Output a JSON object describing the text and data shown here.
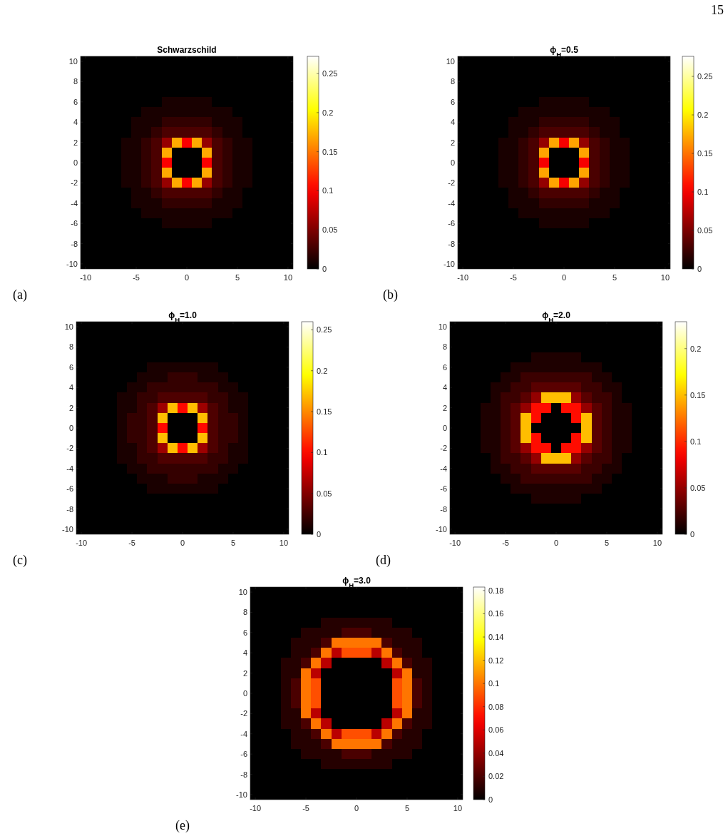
{
  "chart_data": [
    {
      "type": "heatmap",
      "title": "Schwarzschild",
      "annotations": [
        "(a)",
        "15"
      ],
      "categories": [
        "-10",
        null,
        null,
        null,
        null,
        "-5",
        null,
        null,
        null,
        null,
        "0",
        null,
        null,
        null,
        null,
        "5",
        null,
        null,
        null,
        null,
        "10"
      ],
      "y_categories": [
        "10",
        null,
        "8",
        null,
        "6",
        null,
        "4",
        null,
        "2",
        null,
        "0",
        null,
        "-2",
        null,
        "-4",
        null,
        "-6",
        null,
        "-8",
        null,
        "-10"
      ],
      "clim": [
        0,
        0.272
      ],
      "cticks": [
        0,
        0.05,
        0.1,
        0.15,
        0.2,
        0.25
      ],
      "cells": [
        [
          0,
          0,
          0,
          0,
          0,
          0,
          0,
          0,
          0,
          0,
          0,
          0,
          0,
          0,
          0,
          0,
          0,
          0,
          0,
          0,
          0
        ],
        [
          0,
          0,
          0,
          0,
          0,
          0,
          0,
          0,
          0,
          0,
          0,
          0,
          0,
          0,
          0,
          0,
          0,
          0,
          0,
          0,
          0
        ],
        [
          0,
          0,
          0,
          0,
          0,
          0,
          0,
          0,
          0,
          0,
          0,
          0,
          0,
          0,
          0,
          0,
          0,
          0,
          0,
          0,
          0
        ],
        [
          0,
          0,
          0,
          0,
          0,
          0,
          0,
          0,
          0,
          0,
          0,
          0,
          0,
          0,
          0,
          0,
          0,
          0,
          0,
          0,
          0
        ],
        [
          0,
          0,
          0,
          0,
          0,
          0,
          0,
          0,
          0.01,
          0.01,
          0.01,
          0.01,
          0.01,
          0,
          0,
          0,
          0,
          0,
          0,
          0,
          0
        ],
        [
          0,
          0,
          0,
          0,
          0,
          0,
          0.01,
          0.01,
          0.01,
          0.01,
          0.01,
          0.01,
          0.01,
          0.01,
          0.01,
          0,
          0,
          0,
          0,
          0,
          0
        ],
        [
          0,
          0,
          0,
          0,
          0,
          0.01,
          0.01,
          0.01,
          0.02,
          0.02,
          0.02,
          0.02,
          0.02,
          0.01,
          0.01,
          0.01,
          0,
          0,
          0,
          0,
          0
        ],
        [
          0,
          0,
          0,
          0,
          0,
          0.01,
          0.01,
          0.02,
          0.03,
          0.03,
          0.03,
          0.03,
          0.03,
          0.02,
          0.01,
          0.01,
          0,
          0,
          0,
          0,
          0
        ],
        [
          0,
          0,
          0,
          0,
          0.01,
          0.01,
          0.02,
          0.03,
          0.06,
          0.17,
          0.1,
          0.17,
          0.06,
          0.03,
          0.02,
          0.01,
          0.01,
          0,
          0,
          0,
          0
        ],
        [
          0,
          0,
          0,
          0,
          0.01,
          0.01,
          0.02,
          0.03,
          0.17,
          0,
          0,
          0,
          0.17,
          0.03,
          0.02,
          0.01,
          0.01,
          0,
          0,
          0,
          0
        ],
        [
          0,
          0,
          0,
          0,
          0.01,
          0.01,
          0.02,
          0.03,
          0.1,
          0,
          0,
          0,
          0.1,
          0.03,
          0.02,
          0.01,
          0.01,
          0,
          0,
          0,
          0
        ],
        [
          0,
          0,
          0,
          0,
          0.01,
          0.01,
          0.02,
          0.03,
          0.17,
          0,
          0,
          0,
          0.17,
          0.03,
          0.02,
          0.01,
          0.01,
          0,
          0,
          0,
          0
        ],
        [
          0,
          0,
          0,
          0,
          0.01,
          0.01,
          0.02,
          0.03,
          0.06,
          0.17,
          0.1,
          0.17,
          0.06,
          0.03,
          0.02,
          0.01,
          0.01,
          0,
          0,
          0,
          0
        ],
        [
          0,
          0,
          0,
          0,
          0,
          0.01,
          0.01,
          0.02,
          0.03,
          0.03,
          0.03,
          0.03,
          0.03,
          0.02,
          0.01,
          0.01,
          0,
          0,
          0,
          0,
          0
        ],
        [
          0,
          0,
          0,
          0,
          0,
          0.01,
          0.01,
          0.01,
          0.02,
          0.02,
          0.02,
          0.02,
          0.02,
          0.01,
          0.01,
          0.01,
          0,
          0,
          0,
          0,
          0
        ],
        [
          0,
          0,
          0,
          0,
          0,
          0,
          0.01,
          0.01,
          0.01,
          0.01,
          0.01,
          0.01,
          0.01,
          0.01,
          0.01,
          0,
          0,
          0,
          0,
          0,
          0
        ],
        [
          0,
          0,
          0,
          0,
          0,
          0,
          0,
          0,
          0.01,
          0.01,
          0.01,
          0.01,
          0.01,
          0,
          0,
          0,
          0,
          0,
          0,
          0,
          0
        ],
        [
          0,
          0,
          0,
          0,
          0,
          0,
          0,
          0,
          0,
          0,
          0,
          0,
          0,
          0,
          0,
          0,
          0,
          0,
          0,
          0,
          0
        ],
        [
          0,
          0,
          0,
          0,
          0,
          0,
          0,
          0,
          0,
          0,
          0,
          0,
          0,
          0,
          0,
          0,
          0,
          0,
          0,
          0,
          0
        ],
        [
          0,
          0,
          0,
          0,
          0,
          0,
          0,
          0,
          0,
          0,
          0,
          0,
          0,
          0,
          0,
          0,
          0,
          0,
          0,
          0,
          0
        ],
        [
          0,
          0,
          0,
          0,
          0,
          0,
          0,
          0,
          0,
          0,
          0,
          0,
          0,
          0,
          0,
          0,
          0,
          0,
          0,
          0,
          0
        ]
      ]
    },
    {
      "type": "heatmap",
      "title": "ϕ$_{H}$=0.5",
      "annotations": [
        "(b)"
      ],
      "categories": [
        "-10",
        null,
        null,
        null,
        null,
        "-5",
        null,
        null,
        null,
        null,
        "0",
        null,
        null,
        null,
        null,
        "5",
        null,
        null,
        null,
        null,
        "10"
      ],
      "y_categories": [
        "10",
        null,
        "8",
        null,
        "6",
        null,
        "4",
        null,
        "2",
        null,
        "0",
        null,
        "-2",
        null,
        "-4",
        null,
        "-6",
        null,
        "-8",
        null,
        "-10"
      ],
      "clim": [
        0,
        0.276
      ],
      "cticks": [
        0,
        0.05,
        0.1,
        0.15,
        0.2,
        0.25
      ],
      "cells": [
        [
          0,
          0,
          0,
          0,
          0,
          0,
          0,
          0,
          0,
          0,
          0,
          0,
          0,
          0,
          0,
          0,
          0,
          0,
          0,
          0,
          0
        ],
        [
          0,
          0,
          0,
          0,
          0,
          0,
          0,
          0,
          0,
          0,
          0,
          0,
          0,
          0,
          0,
          0,
          0,
          0,
          0,
          0,
          0
        ],
        [
          0,
          0,
          0,
          0,
          0,
          0,
          0,
          0,
          0,
          0,
          0,
          0,
          0,
          0,
          0,
          0,
          0,
          0,
          0,
          0,
          0
        ],
        [
          0,
          0,
          0,
          0,
          0,
          0,
          0,
          0,
          0,
          0,
          0,
          0,
          0,
          0,
          0,
          0,
          0,
          0,
          0,
          0,
          0
        ],
        [
          0,
          0,
          0,
          0,
          0,
          0,
          0,
          0,
          0.01,
          0.01,
          0.01,
          0.01,
          0.01,
          0,
          0,
          0,
          0,
          0,
          0,
          0,
          0
        ],
        [
          0,
          0,
          0,
          0,
          0,
          0,
          0.01,
          0.01,
          0.01,
          0.01,
          0.01,
          0.01,
          0.01,
          0.01,
          0.01,
          0,
          0,
          0,
          0,
          0,
          0
        ],
        [
          0,
          0,
          0,
          0,
          0,
          0.01,
          0.01,
          0.01,
          0.02,
          0.02,
          0.02,
          0.02,
          0.02,
          0.01,
          0.01,
          0.01,
          0,
          0,
          0,
          0,
          0
        ],
        [
          0,
          0,
          0,
          0,
          0,
          0.01,
          0.01,
          0.02,
          0.03,
          0.03,
          0.03,
          0.03,
          0.03,
          0.02,
          0.01,
          0.01,
          0,
          0,
          0,
          0,
          0
        ],
        [
          0,
          0,
          0,
          0,
          0.01,
          0.01,
          0.02,
          0.03,
          0.06,
          0.17,
          0.1,
          0.17,
          0.06,
          0.03,
          0.02,
          0.01,
          0.01,
          0,
          0,
          0,
          0
        ],
        [
          0,
          0,
          0,
          0,
          0.01,
          0.01,
          0.02,
          0.03,
          0.17,
          0,
          0,
          0,
          0.17,
          0.03,
          0.02,
          0.01,
          0.01,
          0,
          0,
          0,
          0
        ],
        [
          0,
          0,
          0,
          0,
          0.01,
          0.01,
          0.02,
          0.03,
          0.1,
          0,
          0,
          0,
          0.1,
          0.03,
          0.02,
          0.01,
          0.01,
          0,
          0,
          0,
          0
        ],
        [
          0,
          0,
          0,
          0,
          0.01,
          0.01,
          0.02,
          0.03,
          0.17,
          0,
          0,
          0,
          0.17,
          0.03,
          0.02,
          0.01,
          0.01,
          0,
          0,
          0,
          0
        ],
        [
          0,
          0,
          0,
          0,
          0.01,
          0.01,
          0.02,
          0.03,
          0.06,
          0.17,
          0.1,
          0.17,
          0.06,
          0.03,
          0.02,
          0.01,
          0.01,
          0,
          0,
          0,
          0
        ],
        [
          0,
          0,
          0,
          0,
          0,
          0.01,
          0.01,
          0.02,
          0.03,
          0.03,
          0.03,
          0.03,
          0.03,
          0.02,
          0.01,
          0.01,
          0,
          0,
          0,
          0,
          0
        ],
        [
          0,
          0,
          0,
          0,
          0,
          0.01,
          0.01,
          0.01,
          0.02,
          0.02,
          0.02,
          0.02,
          0.02,
          0.01,
          0.01,
          0.01,
          0,
          0,
          0,
          0,
          0
        ],
        [
          0,
          0,
          0,
          0,
          0,
          0,
          0.01,
          0.01,
          0.01,
          0.01,
          0.01,
          0.01,
          0.01,
          0.01,
          0.01,
          0,
          0,
          0,
          0,
          0,
          0
        ],
        [
          0,
          0,
          0,
          0,
          0,
          0,
          0,
          0,
          0.01,
          0.01,
          0.01,
          0.01,
          0.01,
          0,
          0,
          0,
          0,
          0,
          0,
          0,
          0
        ],
        [
          0,
          0,
          0,
          0,
          0,
          0,
          0,
          0,
          0,
          0,
          0,
          0,
          0,
          0,
          0,
          0,
          0,
          0,
          0,
          0,
          0
        ],
        [
          0,
          0,
          0,
          0,
          0,
          0,
          0,
          0,
          0,
          0,
          0,
          0,
          0,
          0,
          0,
          0,
          0,
          0,
          0,
          0,
          0
        ],
        [
          0,
          0,
          0,
          0,
          0,
          0,
          0,
          0,
          0,
          0,
          0,
          0,
          0,
          0,
          0,
          0,
          0,
          0,
          0,
          0,
          0
        ],
        [
          0,
          0,
          0,
          0,
          0,
          0,
          0,
          0,
          0,
          0,
          0,
          0,
          0,
          0,
          0,
          0,
          0,
          0,
          0,
          0,
          0
        ]
      ]
    },
    {
      "type": "heatmap",
      "title": "ϕ$_{H}$=1.0",
      "annotations": [
        "(c)"
      ],
      "categories": [
        "-10",
        null,
        null,
        null,
        null,
        "-5",
        null,
        null,
        null,
        null,
        "0",
        null,
        null,
        null,
        null,
        "5",
        null,
        null,
        null,
        null,
        "10"
      ],
      "y_categories": [
        "10",
        null,
        "8",
        null,
        "6",
        null,
        "4",
        null,
        "2",
        null,
        "0",
        null,
        "-2",
        null,
        "-4",
        null,
        "-6",
        null,
        "-8",
        null,
        "-10"
      ],
      "clim": [
        0,
        0.26
      ],
      "cticks": [
        0,
        0.05,
        0.1,
        0.15,
        0.2,
        0.25
      ],
      "cells": [
        [
          0,
          0,
          0,
          0,
          0,
          0,
          0,
          0,
          0,
          0,
          0,
          0,
          0,
          0,
          0,
          0,
          0,
          0,
          0,
          0,
          0
        ],
        [
          0,
          0,
          0,
          0,
          0,
          0,
          0,
          0,
          0,
          0,
          0,
          0,
          0,
          0,
          0,
          0,
          0,
          0,
          0,
          0,
          0
        ],
        [
          0,
          0,
          0,
          0,
          0,
          0,
          0,
          0,
          0,
          0,
          0,
          0,
          0,
          0,
          0,
          0,
          0,
          0,
          0,
          0,
          0
        ],
        [
          0,
          0,
          0,
          0,
          0,
          0,
          0,
          0,
          0,
          0,
          0,
          0,
          0,
          0,
          0,
          0,
          0,
          0,
          0,
          0,
          0
        ],
        [
          0,
          0,
          0,
          0,
          0,
          0,
          0,
          0.01,
          0.01,
          0.01,
          0.01,
          0.01,
          0.01,
          0.01,
          0,
          0,
          0,
          0,
          0,
          0,
          0
        ],
        [
          0,
          0,
          0,
          0,
          0,
          0,
          0.01,
          0.01,
          0.01,
          0.02,
          0.02,
          0.02,
          0.01,
          0.01,
          0.01,
          0,
          0,
          0,
          0,
          0,
          0
        ],
        [
          0,
          0,
          0,
          0,
          0,
          0.01,
          0.01,
          0.02,
          0.02,
          0.02,
          0.02,
          0.02,
          0.02,
          0.02,
          0.01,
          0.01,
          0,
          0,
          0,
          0,
          0
        ],
        [
          0,
          0,
          0,
          0,
          0.01,
          0.01,
          0.02,
          0.02,
          0.03,
          0.03,
          0.03,
          0.03,
          0.03,
          0.02,
          0.02,
          0.01,
          0.01,
          0,
          0,
          0,
          0
        ],
        [
          0,
          0,
          0,
          0,
          0.01,
          0.01,
          0.02,
          0.03,
          0.06,
          0.17,
          0.1,
          0.17,
          0.06,
          0.03,
          0.02,
          0.01,
          0.01,
          0,
          0,
          0,
          0
        ],
        [
          0,
          0,
          0,
          0,
          0.01,
          0.02,
          0.02,
          0.03,
          0.17,
          0,
          0,
          0,
          0.17,
          0.03,
          0.02,
          0.02,
          0.01,
          0,
          0,
          0,
          0
        ],
        [
          0,
          0,
          0,
          0,
          0.01,
          0.02,
          0.02,
          0.03,
          0.1,
          0,
          0,
          0,
          0.1,
          0.03,
          0.02,
          0.02,
          0.01,
          0,
          0,
          0,
          0
        ],
        [
          0,
          0,
          0,
          0,
          0.01,
          0.02,
          0.02,
          0.03,
          0.17,
          0,
          0,
          0,
          0.17,
          0.03,
          0.02,
          0.02,
          0.01,
          0,
          0,
          0,
          0
        ],
        [
          0,
          0,
          0,
          0,
          0.01,
          0.01,
          0.02,
          0.03,
          0.06,
          0.17,
          0.1,
          0.17,
          0.06,
          0.03,
          0.02,
          0.01,
          0.01,
          0,
          0,
          0,
          0
        ],
        [
          0,
          0,
          0,
          0,
          0.01,
          0.01,
          0.02,
          0.02,
          0.03,
          0.03,
          0.03,
          0.03,
          0.03,
          0.02,
          0.02,
          0.01,
          0.01,
          0,
          0,
          0,
          0
        ],
        [
          0,
          0,
          0,
          0,
          0,
          0.01,
          0.01,
          0.02,
          0.02,
          0.02,
          0.02,
          0.02,
          0.02,
          0.02,
          0.01,
          0.01,
          0,
          0,
          0,
          0,
          0
        ],
        [
          0,
          0,
          0,
          0,
          0,
          0,
          0.01,
          0.01,
          0.01,
          0.02,
          0.02,
          0.02,
          0.01,
          0.01,
          0.01,
          0,
          0,
          0,
          0,
          0,
          0
        ],
        [
          0,
          0,
          0,
          0,
          0,
          0,
          0,
          0.01,
          0.01,
          0.01,
          0.01,
          0.01,
          0.01,
          0.01,
          0,
          0,
          0,
          0,
          0,
          0,
          0
        ],
        [
          0,
          0,
          0,
          0,
          0,
          0,
          0,
          0,
          0,
          0,
          0,
          0,
          0,
          0,
          0,
          0,
          0,
          0,
          0,
          0,
          0
        ],
        [
          0,
          0,
          0,
          0,
          0,
          0,
          0,
          0,
          0,
          0,
          0,
          0,
          0,
          0,
          0,
          0,
          0,
          0,
          0,
          0,
          0
        ],
        [
          0,
          0,
          0,
          0,
          0,
          0,
          0,
          0,
          0,
          0,
          0,
          0,
          0,
          0,
          0,
          0,
          0,
          0,
          0,
          0,
          0
        ],
        [
          0,
          0,
          0,
          0,
          0,
          0,
          0,
          0,
          0,
          0,
          0,
          0,
          0,
          0,
          0,
          0,
          0,
          0,
          0,
          0,
          0
        ]
      ]
    },
    {
      "type": "heatmap",
      "title": "ϕ$_{H}$=2.0",
      "annotations": [
        "(d)"
      ],
      "categories": [
        "-10",
        null,
        null,
        null,
        null,
        "-5",
        null,
        null,
        null,
        null,
        "0",
        null,
        null,
        null,
        null,
        "5",
        null,
        null,
        null,
        null,
        "10"
      ],
      "y_categories": [
        "10",
        null,
        "8",
        null,
        "6",
        null,
        "4",
        null,
        "2",
        null,
        "0",
        null,
        "-2",
        null,
        "-4",
        null,
        "-6",
        null,
        "-8",
        null,
        "-10"
      ],
      "clim": [
        0,
        0.229
      ],
      "cticks": [
        0,
        0.05,
        0.1,
        0.15,
        0.2
      ],
      "cells": [
        [
          0,
          0,
          0,
          0,
          0,
          0,
          0,
          0,
          0,
          0,
          0,
          0,
          0,
          0,
          0,
          0,
          0,
          0,
          0,
          0,
          0
        ],
        [
          0,
          0,
          0,
          0,
          0,
          0,
          0,
          0,
          0,
          0,
          0,
          0,
          0,
          0,
          0,
          0,
          0,
          0,
          0,
          0,
          0
        ],
        [
          0,
          0,
          0,
          0,
          0,
          0,
          0,
          0,
          0,
          0,
          0,
          0,
          0,
          0,
          0,
          0,
          0,
          0,
          0,
          0,
          0
        ],
        [
          0,
          0,
          0,
          0,
          0,
          0,
          0,
          0,
          0.01,
          0.01,
          0.01,
          0.01,
          0.01,
          0,
          0,
          0,
          0,
          0,
          0,
          0,
          0
        ],
        [
          0,
          0,
          0,
          0,
          0,
          0,
          0.01,
          0.01,
          0.01,
          0.01,
          0.01,
          0.01,
          0.01,
          0.01,
          0.01,
          0,
          0,
          0,
          0,
          0,
          0
        ],
        [
          0,
          0,
          0,
          0,
          0,
          0.01,
          0.01,
          0.02,
          0.02,
          0.02,
          0.02,
          0.02,
          0.02,
          0.02,
          0.01,
          0.01,
          0,
          0,
          0,
          0,
          0
        ],
        [
          0,
          0,
          0,
          0,
          0.01,
          0.01,
          0.02,
          0.02,
          0.03,
          0.03,
          0.03,
          0.03,
          0.03,
          0.02,
          0.02,
          0.01,
          0.01,
          0,
          0,
          0,
          0
        ],
        [
          0,
          0,
          0,
          0,
          0.01,
          0.02,
          0.02,
          0.03,
          0.05,
          0.15,
          0.15,
          0.15,
          0.05,
          0.03,
          0.02,
          0.02,
          0.01,
          0,
          0,
          0,
          0
        ],
        [
          0,
          0,
          0,
          0.01,
          0.01,
          0.02,
          0.03,
          0.05,
          0.09,
          0.09,
          0,
          0.09,
          0.09,
          0.05,
          0.03,
          0.02,
          0.01,
          0.01,
          0,
          0,
          0
        ],
        [
          0,
          0,
          0,
          0.01,
          0.01,
          0.02,
          0.03,
          0.15,
          0.09,
          0,
          0,
          0,
          0.09,
          0.15,
          0.03,
          0.02,
          0.01,
          0.01,
          0,
          0,
          0
        ],
        [
          0,
          0,
          0,
          0.01,
          0.01,
          0.02,
          0.03,
          0.15,
          0,
          0,
          0,
          0,
          0,
          0.15,
          0.03,
          0.02,
          0.01,
          0.01,
          0,
          0,
          0
        ],
        [
          0,
          0,
          0,
          0.01,
          0.01,
          0.02,
          0.03,
          0.15,
          0.09,
          0,
          0,
          0,
          0.09,
          0.15,
          0.03,
          0.02,
          0.01,
          0.01,
          0,
          0,
          0
        ],
        [
          0,
          0,
          0,
          0.01,
          0.01,
          0.02,
          0.03,
          0.05,
          0.09,
          0.09,
          0,
          0.09,
          0.09,
          0.05,
          0.03,
          0.02,
          0.01,
          0.01,
          0,
          0,
          0
        ],
        [
          0,
          0,
          0,
          0,
          0.01,
          0.02,
          0.02,
          0.03,
          0.05,
          0.15,
          0.15,
          0.15,
          0.05,
          0.03,
          0.02,
          0.02,
          0.01,
          0,
          0,
          0,
          0
        ],
        [
          0,
          0,
          0,
          0,
          0.01,
          0.01,
          0.02,
          0.02,
          0.03,
          0.03,
          0.03,
          0.03,
          0.03,
          0.02,
          0.02,
          0.01,
          0.01,
          0,
          0,
          0,
          0
        ],
        [
          0,
          0,
          0,
          0,
          0,
          0.01,
          0.01,
          0.02,
          0.02,
          0.02,
          0.02,
          0.02,
          0.02,
          0.02,
          0.01,
          0.01,
          0,
          0,
          0,
          0,
          0
        ],
        [
          0,
          0,
          0,
          0,
          0,
          0,
          0.01,
          0.01,
          0.01,
          0.01,
          0.01,
          0.01,
          0.01,
          0.01,
          0.01,
          0,
          0,
          0,
          0,
          0,
          0
        ],
        [
          0,
          0,
          0,
          0,
          0,
          0,
          0,
          0,
          0.01,
          0.01,
          0.01,
          0.01,
          0.01,
          0,
          0,
          0,
          0,
          0,
          0,
          0,
          0
        ],
        [
          0,
          0,
          0,
          0,
          0,
          0,
          0,
          0,
          0,
          0,
          0,
          0,
          0,
          0,
          0,
          0,
          0,
          0,
          0,
          0,
          0
        ],
        [
          0,
          0,
          0,
          0,
          0,
          0,
          0,
          0,
          0,
          0,
          0,
          0,
          0,
          0,
          0,
          0,
          0,
          0,
          0,
          0,
          0
        ],
        [
          0,
          0,
          0,
          0,
          0,
          0,
          0,
          0,
          0,
          0,
          0,
          0,
          0,
          0,
          0,
          0,
          0,
          0,
          0,
          0,
          0
        ]
      ]
    },
    {
      "type": "heatmap",
      "title": "ϕ$_{H}$=3.0",
      "annotations": [
        "(e)"
      ],
      "categories": [
        "-10",
        null,
        null,
        null,
        null,
        "-5",
        null,
        null,
        null,
        null,
        "0",
        null,
        null,
        null,
        null,
        "5",
        null,
        null,
        null,
        null,
        "10"
      ],
      "y_categories": [
        "10",
        null,
        "8",
        null,
        "6",
        null,
        "4",
        null,
        "2",
        null,
        "0",
        null,
        "-2",
        null,
        "-4",
        null,
        "-6",
        null,
        "-8",
        null,
        "-10"
      ],
      "clim": [
        0,
        0.183
      ],
      "cticks": [
        0,
        0.02,
        0.04,
        0.06,
        0.08,
        0.1,
        0.12,
        0.14,
        0.16,
        0.18
      ],
      "cells": [
        [
          0,
          0,
          0,
          0,
          0,
          0,
          0,
          0,
          0,
          0,
          0,
          0,
          0,
          0,
          0,
          0,
          0,
          0,
          0,
          0,
          0
        ],
        [
          0,
          0,
          0,
          0,
          0,
          0,
          0,
          0,
          0,
          0,
          0,
          0,
          0,
          0,
          0,
          0,
          0,
          0,
          0,
          0,
          0
        ],
        [
          0,
          0,
          0,
          0,
          0,
          0,
          0,
          0,
          0,
          0,
          0,
          0,
          0,
          0,
          0,
          0,
          0,
          0,
          0,
          0,
          0
        ],
        [
          0,
          0,
          0,
          0,
          0,
          0,
          0,
          0.01,
          0.01,
          0.01,
          0.01,
          0.01,
          0.01,
          0.01,
          0,
          0,
          0,
          0,
          0,
          0,
          0
        ],
        [
          0,
          0,
          0,
          0,
          0,
          0.01,
          0.01,
          0.01,
          0.01,
          0.02,
          0.02,
          0.02,
          0.01,
          0.01,
          0.01,
          0.01,
          0,
          0,
          0,
          0,
          0
        ],
        [
          0,
          0,
          0,
          0,
          0.01,
          0.01,
          0.01,
          0.02,
          0.1,
          0.1,
          0.1,
          0.1,
          0.1,
          0.02,
          0.01,
          0.01,
          0.01,
          0,
          0,
          0,
          0
        ],
        [
          0,
          0,
          0,
          0,
          0.01,
          0.01,
          0.02,
          0.1,
          0.05,
          0.09,
          0.09,
          0.09,
          0.05,
          0.1,
          0.02,
          0.01,
          0.01,
          0,
          0,
          0,
          0
        ],
        [
          0,
          0,
          0,
          0.01,
          0.01,
          0.02,
          0.1,
          0.05,
          0,
          0,
          0,
          0,
          0,
          0.05,
          0.1,
          0.02,
          0.01,
          0.01,
          0,
          0,
          0
        ],
        [
          0,
          0,
          0,
          0.01,
          0.01,
          0.1,
          0.05,
          0,
          0,
          0,
          0,
          0,
          0,
          0,
          0.05,
          0.1,
          0.01,
          0.01,
          0,
          0,
          0
        ],
        [
          0,
          0,
          0,
          0.01,
          0.02,
          0.1,
          0.09,
          0,
          0,
          0,
          0,
          0,
          0,
          0,
          0.09,
          0.1,
          0.02,
          0.01,
          0,
          0,
          0
        ],
        [
          0,
          0,
          0,
          0.01,
          0.02,
          0.1,
          0.09,
          0,
          0,
          0,
          0,
          0,
          0,
          0,
          0.09,
          0.1,
          0.02,
          0.01,
          0,
          0,
          0
        ],
        [
          0,
          0,
          0,
          0.01,
          0.02,
          0.1,
          0.09,
          0,
          0,
          0,
          0,
          0,
          0,
          0,
          0.09,
          0.1,
          0.02,
          0.01,
          0,
          0,
          0
        ],
        [
          0,
          0,
          0,
          0.01,
          0.01,
          0.1,
          0.05,
          0,
          0,
          0,
          0,
          0,
          0,
          0,
          0.05,
          0.1,
          0.01,
          0.01,
          0,
          0,
          0
        ],
        [
          0,
          0,
          0,
          0.01,
          0.01,
          0.02,
          0.1,
          0.05,
          0,
          0,
          0,
          0,
          0,
          0.05,
          0.1,
          0.02,
          0.01,
          0.01,
          0,
          0,
          0
        ],
        [
          0,
          0,
          0,
          0,
          0.01,
          0.01,
          0.02,
          0.1,
          0.05,
          0.09,
          0.09,
          0.09,
          0.05,
          0.1,
          0.02,
          0.01,
          0.01,
          0,
          0,
          0,
          0
        ],
        [
          0,
          0,
          0,
          0,
          0.01,
          0.01,
          0.01,
          0.02,
          0.1,
          0.1,
          0.1,
          0.1,
          0.1,
          0.02,
          0.01,
          0.01,
          0.01,
          0,
          0,
          0,
          0
        ],
        [
          0,
          0,
          0,
          0,
          0,
          0.01,
          0.01,
          0.01,
          0.01,
          0.02,
          0.02,
          0.02,
          0.01,
          0.01,
          0.01,
          0.01,
          0,
          0,
          0,
          0,
          0
        ],
        [
          0,
          0,
          0,
          0,
          0,
          0,
          0,
          0.01,
          0.01,
          0.01,
          0.01,
          0.01,
          0.01,
          0.01,
          0,
          0,
          0,
          0,
          0,
          0,
          0
        ],
        [
          0,
          0,
          0,
          0,
          0,
          0,
          0,
          0,
          0,
          0,
          0,
          0,
          0,
          0,
          0,
          0,
          0,
          0,
          0,
          0,
          0
        ],
        [
          0,
          0,
          0,
          0,
          0,
          0,
          0,
          0,
          0,
          0,
          0,
          0,
          0,
          0,
          0,
          0,
          0,
          0,
          0,
          0,
          0
        ],
        [
          0,
          0,
          0,
          0,
          0,
          0,
          0,
          0,
          0,
          0,
          0,
          0,
          0,
          0,
          0,
          0,
          0,
          0,
          0,
          0,
          0
        ]
      ]
    }
  ]
}
